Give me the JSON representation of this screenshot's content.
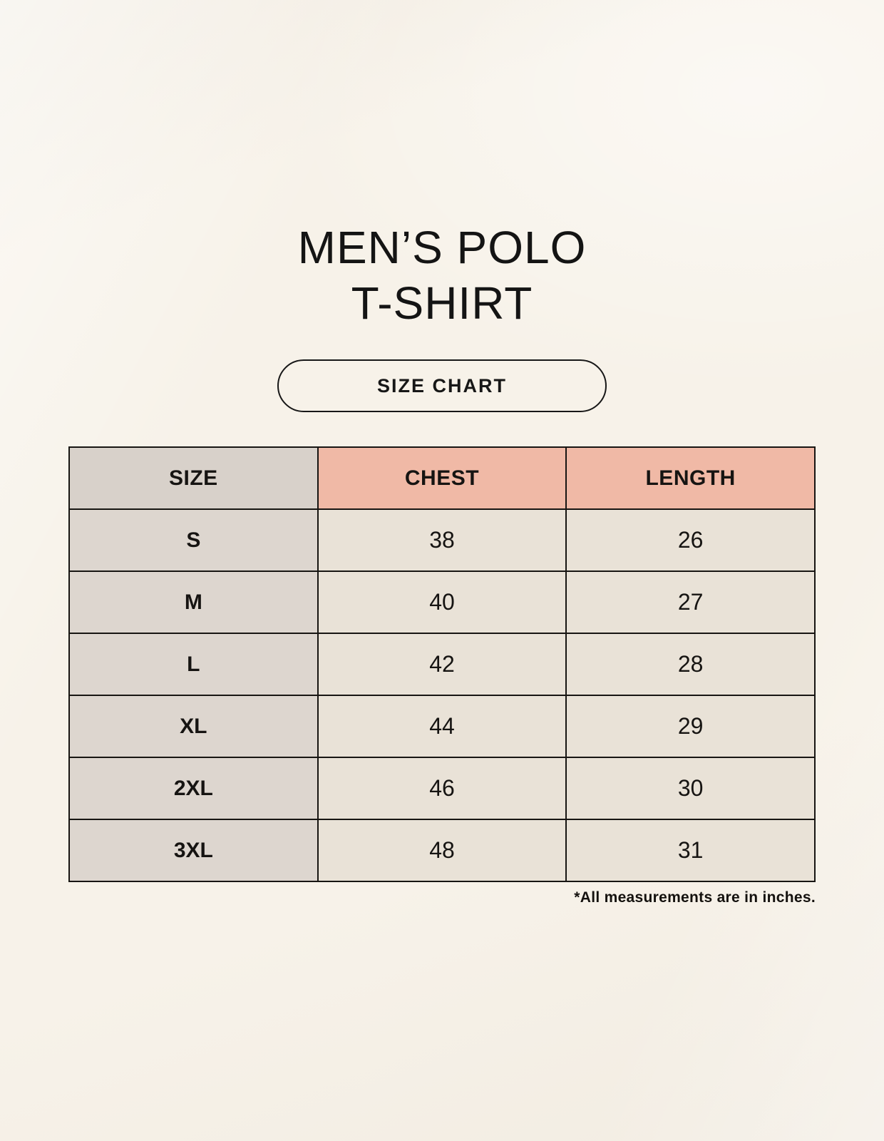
{
  "page": {
    "title_line1": "MEN’S POLO",
    "title_line2": "T-SHIRT",
    "size_chart_button_label": "SIZE CHART",
    "footnote": "*All measurements are in inches."
  },
  "chart_data": {
    "type": "table",
    "title": "MEN’S POLO T-SHIRT — SIZE CHART",
    "columns": [
      "SIZE",
      "CHEST",
      "LENGTH"
    ],
    "rows": [
      [
        "S",
        "38",
        "26"
      ],
      [
        "M",
        "40",
        "27"
      ],
      [
        "L",
        "42",
        "28"
      ],
      [
        "XL",
        "44",
        "29"
      ],
      [
        "2XL",
        "46",
        "30"
      ],
      [
        "3XL",
        "48",
        "31"
      ]
    ],
    "units": "inches",
    "note": "*All measurements are in inches."
  },
  "colors": {
    "bg": "#f7f2e9",
    "pink": "#f0b9a6",
    "taupe-header": "#d8d1ca",
    "taupe-col": "#ddd6cf",
    "cream-cell": "#e9e2d7",
    "border": "#171512"
  }
}
